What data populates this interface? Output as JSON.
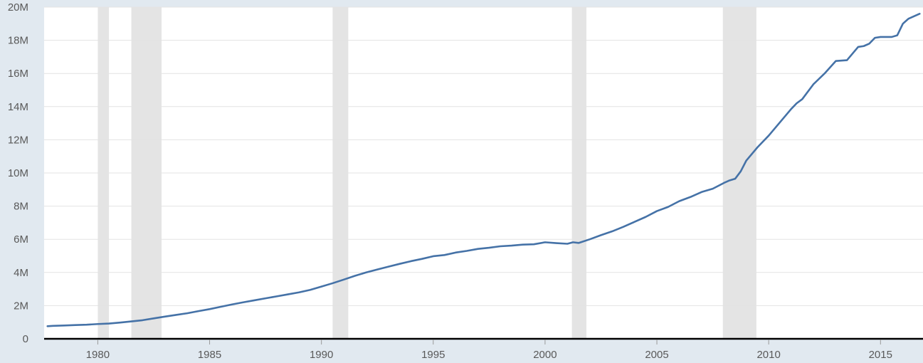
{
  "chart_data": {
    "type": "line",
    "title": "",
    "xlabel": "",
    "ylabel": "",
    "xlim": [
      1977.6,
      2016.9
    ],
    "ylim": [
      0,
      20000000
    ],
    "grid": true,
    "legend": "none",
    "y_ticks": [
      0,
      2000000,
      4000000,
      6000000,
      8000000,
      10000000,
      12000000,
      14000000,
      16000000,
      18000000,
      20000000
    ],
    "y_tick_labels": [
      "0",
      "2M",
      "4M",
      "6M",
      "8M",
      "10M",
      "12M",
      "14M",
      "16M",
      "18M",
      "20M"
    ],
    "x_ticks": [
      1980,
      1985,
      1990,
      1995,
      2000,
      2005,
      2010,
      2015
    ],
    "x_tick_labels": [
      "1980",
      "1985",
      "1990",
      "1995",
      "2000",
      "2005",
      "2010",
      "2015"
    ],
    "recessions": [
      {
        "start": 1980.0,
        "end": 1980.5
      },
      {
        "start": 1981.5,
        "end": 1982.85
      },
      {
        "start": 1990.5,
        "end": 1991.2
      },
      {
        "start": 2001.2,
        "end": 2001.85
      },
      {
        "start": 2007.95,
        "end": 2009.45
      }
    ],
    "colors": {
      "series": "#4572a7",
      "recession": "#e4e4e4",
      "background": "#e1e9f0",
      "plot": "#ffffff"
    },
    "series": [
      {
        "x": [
          1977.75,
          1978.0,
          1978.5,
          1979.0,
          1979.5,
          1980.0,
          1980.5,
          1981.0,
          1981.5,
          1982.0,
          1982.5,
          1983.0,
          1983.5,
          1984.0,
          1984.5,
          1985.0,
          1985.5,
          1986.0,
          1986.5,
          1987.0,
          1987.5,
          1988.0,
          1988.5,
          1989.0,
          1989.5,
          1990.0,
          1990.5,
          1991.0,
          1991.5,
          1992.0,
          1992.5,
          1993.0,
          1993.5,
          1994.0,
          1994.5,
          1995.0,
          1995.5,
          1996.0,
          1996.5,
          1997.0,
          1997.5,
          1998.0,
          1998.5,
          1999.0,
          1999.5,
          2000.0,
          2000.5,
          2001.0,
          2001.25,
          2001.5,
          2002.0,
          2002.5,
          2003.0,
          2003.5,
          2004.0,
          2004.5,
          2005.0,
          2005.5,
          2006.0,
          2006.5,
          2007.0,
          2007.5,
          2008.0,
          2008.25,
          2008.5,
          2008.75,
          2009.0,
          2009.5,
          2010.0,
          2010.5,
          2011.0,
          2011.25,
          2011.5,
          2012.0,
          2012.5,
          2013.0,
          2013.5,
          2014.0,
          2014.25,
          2014.5,
          2014.75,
          2015.0,
          2015.25,
          2015.5,
          2015.75,
          2016.0,
          2016.25,
          2016.5,
          2016.75
        ],
        "values": [
          760000,
          780000,
          800000,
          830000,
          850000,
          890000,
          920000,
          980000,
          1050000,
          1120000,
          1230000,
          1340000,
          1440000,
          1540000,
          1670000,
          1790000,
          1930000,
          2070000,
          2200000,
          2320000,
          2440000,
          2560000,
          2680000,
          2800000,
          2950000,
          3150000,
          3350000,
          3570000,
          3800000,
          4000000,
          4180000,
          4350000,
          4520000,
          4680000,
          4820000,
          4980000,
          5050000,
          5200000,
          5300000,
          5420000,
          5490000,
          5580000,
          5620000,
          5680000,
          5700000,
          5820000,
          5770000,
          5730000,
          5820000,
          5780000,
          6000000,
          6250000,
          6480000,
          6750000,
          7050000,
          7350000,
          7700000,
          7950000,
          8300000,
          8550000,
          8850000,
          9050000,
          9400000,
          9550000,
          9650000,
          10100000,
          10750000,
          11550000,
          12250000,
          13050000,
          13850000,
          14200000,
          14450000,
          15350000,
          16000000,
          16750000,
          16800000,
          17600000,
          17650000,
          17800000,
          18150000,
          18200000,
          18200000,
          18200000,
          18300000,
          19000000,
          19300000,
          19450000,
          19600000
        ]
      }
    ]
  }
}
